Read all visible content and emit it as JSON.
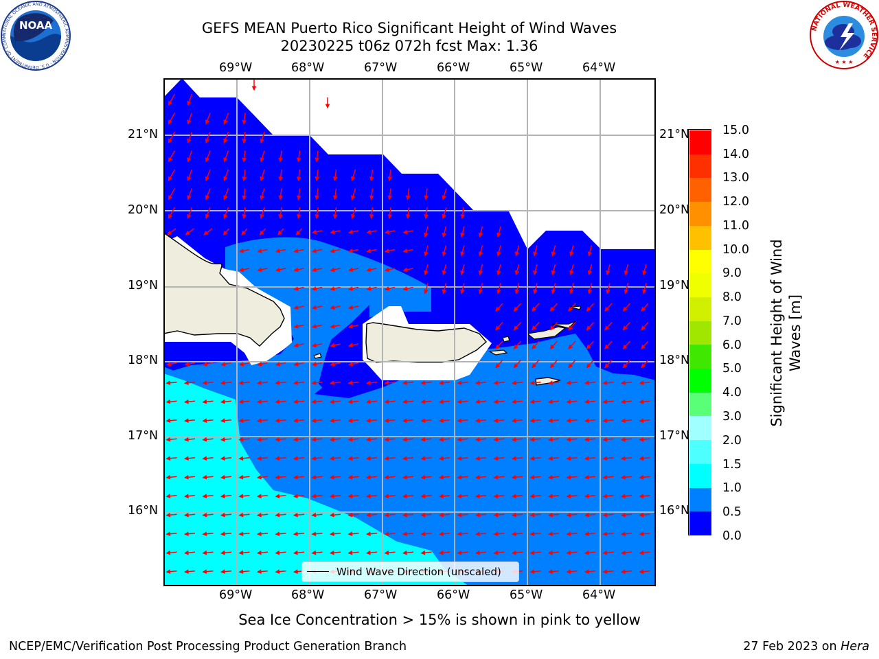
{
  "title": {
    "line1": "GEFS MEAN Puerto Rico Significant Height of Wind Waves",
    "line2": "20230225 t06z 072h fcst   Max: 1.36"
  },
  "map": {
    "lon_ticks": [
      "69°W",
      "68°W",
      "67°W",
      "66°W",
      "65°W",
      "64°W"
    ],
    "lat_ticks": [
      "21°N",
      "20°N",
      "19°N",
      "18°N",
      "17°N",
      "16°N"
    ],
    "legend_label": "Wind Wave Direction (unscaled)",
    "arrow_color": "#ff0000",
    "land_color": "#efedde",
    "fill_colors": {
      "0.0-0.5": "#0000ff",
      "0.5-1.0": "#0080ff",
      "1.0-1.5": "#00ffff"
    }
  },
  "colorbar": {
    "label": "Significant Height of Wind Waves [m]",
    "ticks": [
      "15.0",
      "14.0",
      "13.0",
      "12.0",
      "11.0",
      "10.0",
      "9.0",
      "8.0",
      "7.0",
      "6.0",
      "5.0",
      "4.0",
      "3.0",
      "2.0",
      "1.5",
      "1.0",
      "0.5",
      "0.0"
    ],
    "colors_bottom_to_top": [
      "#0000ff",
      "#0080ff",
      "#00ffff",
      "#4dffff",
      "#a0ffff",
      "#5aff78",
      "#00ff00",
      "#40e800",
      "#a0e600",
      "#d0f000",
      "#f0ff00",
      "#ffff00",
      "#ffc000",
      "#ff9000",
      "#ff6000",
      "#ff3000",
      "#ff0000"
    ]
  },
  "note": "Sea Ice Concentration > 15% is shown in pink to yellow",
  "footer": {
    "left": "NCEP/EMC/Verification Post Processing Product Generation Branch",
    "right_prefix": "27 Feb 2023 on ",
    "right_host": "Hera"
  },
  "logos": {
    "noaa_text": "NOAA",
    "noaa_ring": "NATIONAL OCEANIC AND ATMOSPHERIC ADMINISTRATION · U.S. DEPARTMENT OF COMMERCE ·",
    "nws_ring": "NATIONAL WEATHER SERVICE"
  }
}
